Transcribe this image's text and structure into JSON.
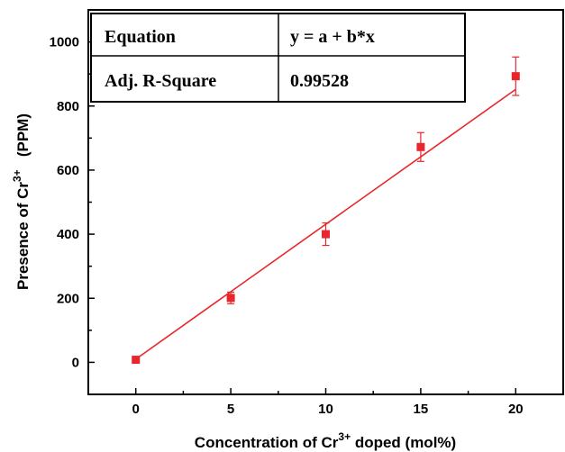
{
  "chart_data": {
    "type": "scatter",
    "xlabel": {
      "prefix": "Concentration of Cr",
      "sup": "3+",
      "suffix": " doped (mol%)"
    },
    "ylabel": {
      "prefix": "Presence of Cr",
      "sup": "3+",
      "suffix": "   (PPM)"
    },
    "xlim": [
      -2.5,
      22.5
    ],
    "ylim": [
      -100,
      1100
    ],
    "xticks": [
      0,
      5,
      10,
      15,
      20
    ],
    "yticks": [
      0,
      200,
      400,
      600,
      800,
      1000
    ],
    "grid": false,
    "series": [
      {
        "points": [
          {
            "x": 0,
            "y": 8,
            "err": 5
          },
          {
            "x": 5,
            "y": 201,
            "err": 18
          },
          {
            "x": 10,
            "y": 400,
            "err": 35
          },
          {
            "x": 15,
            "y": 672,
            "err": 45
          },
          {
            "x": 20,
            "y": 893,
            "err": 60
          }
        ],
        "color": "#e8262b"
      }
    ],
    "fit_line": {
      "x": [
        0,
        20
      ],
      "y": [
        10,
        852
      ],
      "color": "#e8262b"
    },
    "fit_table": [
      {
        "label": "Equation",
        "value": "y = a + b*x"
      },
      {
        "label": "Adj. R-Square",
        "value": "0.99528"
      }
    ]
  }
}
